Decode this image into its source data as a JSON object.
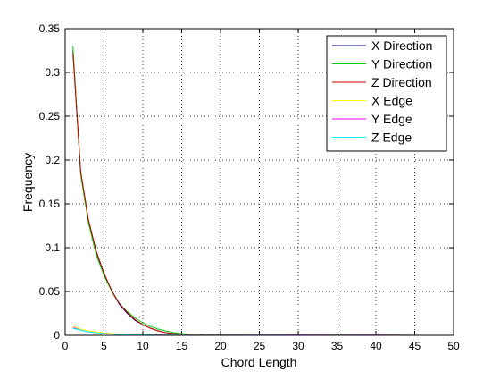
{
  "chart_data": {
    "type": "line",
    "title": "",
    "xlabel": "Chord Length",
    "ylabel": "Frequency",
    "xlim": [
      0,
      50
    ],
    "ylim": [
      0,
      0.35
    ],
    "xticks": [
      0,
      5,
      10,
      15,
      20,
      25,
      30,
      35,
      40,
      45,
      50
    ],
    "yticks": [
      0,
      0.05,
      0.1,
      0.15,
      0.2,
      0.25,
      0.3,
      0.35
    ],
    "xtick_labels": [
      "0",
      "5",
      "10",
      "15",
      "20",
      "25",
      "30",
      "35",
      "40",
      "45",
      "50"
    ],
    "ytick_labels": [
      "0",
      "0.05",
      "0.1",
      "0.15",
      "0.2",
      "0.25",
      "0.3",
      "0.35"
    ],
    "grid": true,
    "legend_position": "top-right",
    "series": [
      {
        "name": "X Direction",
        "color": "#000080",
        "x": [
          1,
          2,
          3,
          4,
          5,
          6,
          7,
          8,
          9,
          10,
          11,
          12,
          13,
          14,
          15,
          16,
          18,
          20,
          25,
          30,
          35,
          40,
          45
        ],
        "y": [
          0.325,
          0.185,
          0.13,
          0.095,
          0.07,
          0.05,
          0.035,
          0.025,
          0.017,
          0.012,
          0.008,
          0.005,
          0.003,
          0.002,
          0.001,
          0.0008,
          0.0005,
          0.0003,
          0.0002,
          0.0001,
          0.0001,
          0.0001,
          0.0
        ]
      },
      {
        "name": "Y Direction",
        "color": "#00cc00",
        "x": [
          1,
          2,
          3,
          4,
          5,
          6,
          7,
          8,
          9,
          10,
          11,
          12,
          13,
          14,
          15,
          16,
          18,
          20,
          25,
          30,
          35,
          40,
          45
        ],
        "y": [
          0.33,
          0.183,
          0.128,
          0.092,
          0.068,
          0.05,
          0.036,
          0.027,
          0.02,
          0.014,
          0.01,
          0.007,
          0.005,
          0.003,
          0.002,
          0.001,
          0.0006,
          0.0003,
          0.0002,
          0.0001,
          0.0001,
          0.0001,
          0.0
        ]
      },
      {
        "name": "Z Direction",
        "color": "#cc0000",
        "x": [
          1,
          2,
          3,
          4,
          5,
          6,
          7,
          8,
          9,
          10,
          11,
          12,
          13,
          14,
          15,
          16,
          18,
          20,
          25,
          30,
          35,
          40,
          45
        ],
        "y": [
          0.322,
          0.187,
          0.132,
          0.096,
          0.071,
          0.051,
          0.036,
          0.026,
          0.018,
          0.012,
          0.008,
          0.005,
          0.003,
          0.002,
          0.001,
          0.0008,
          0.0005,
          0.0003,
          0.0002,
          0.0001,
          0.0001,
          0.0001,
          0.0
        ]
      },
      {
        "name": "X Edge",
        "color": "#ffff00",
        "x": [
          1,
          2,
          3,
          4,
          5,
          6,
          7,
          8,
          10,
          12,
          15,
          20,
          25,
          30,
          35,
          40,
          45
        ],
        "y": [
          0.01,
          0.007,
          0.005,
          0.004,
          0.003,
          0.002,
          0.0015,
          0.001,
          0.0008,
          0.0005,
          0.0003,
          0.0002,
          0.0005,
          0.0003,
          0.0004,
          0.0002,
          0.0
        ]
      },
      {
        "name": "Y Edge",
        "color": "#ff00ff",
        "x": [
          1,
          2,
          3,
          4,
          5,
          6,
          7,
          8,
          10,
          12,
          15,
          20,
          25,
          30,
          35,
          40,
          45
        ],
        "y": [
          0.009,
          0.006,
          0.004,
          0.003,
          0.002,
          0.0015,
          0.001,
          0.0008,
          0.0006,
          0.0004,
          0.0003,
          0.0002,
          0.0004,
          0.0005,
          0.0003,
          0.0004,
          0.0
        ]
      },
      {
        "name": "Z Edge",
        "color": "#00ffff",
        "x": [
          1,
          2,
          3,
          4,
          5,
          6,
          7,
          8,
          10,
          12,
          15,
          20,
          25,
          30,
          35,
          40,
          45
        ],
        "y": [
          0.008,
          0.006,
          0.004,
          0.003,
          0.002,
          0.0015,
          0.001,
          0.0007,
          0.0005,
          0.0003,
          0.0002,
          0.0001,
          0.0002,
          0.0001,
          0.0001,
          0.0001,
          0.0
        ]
      }
    ]
  }
}
